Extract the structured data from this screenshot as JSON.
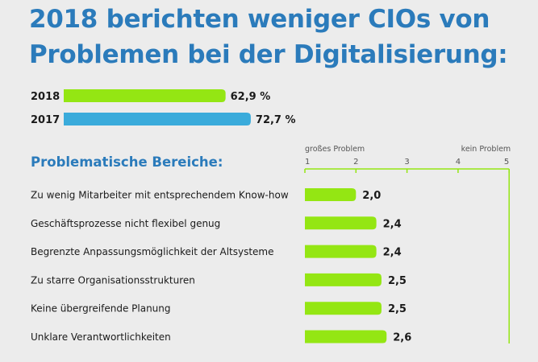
{
  "title": {
    "line1": "2018 berichten weniger CIOs von",
    "line2": "Problemen bei der Digitalisierung:"
  },
  "subtitle": "Problematische Bereiche:",
  "colors": {
    "title": "#2b7bbb",
    "green": "#94e613",
    "blue": "#3aabdb",
    "text": "#1a1a1a"
  },
  "chart_data": [
    {
      "type": "bar",
      "orientation": "horizontal",
      "categories": [
        "2018",
        "2017"
      ],
      "values": [
        62.9,
        72.7
      ],
      "value_labels": [
        "62,9 %",
        "72,7 %"
      ],
      "colors": [
        "#94e613",
        "#3aabdb"
      ],
      "xlim": [
        0,
        100
      ]
    },
    {
      "type": "bar",
      "orientation": "horizontal",
      "title": "Problematische Bereiche:",
      "categories": [
        "Zu wenig Mitarbeiter mit entsprechendem Know-how",
        "Geschäftsprozesse nicht flexibel genug",
        "Begrenzte Anpassungsmöglichkeit der Altsysteme",
        "Zu starre Organisationsstrukturen",
        "Keine übergreifende Planung",
        "Unklare Verantwortlichkeiten"
      ],
      "values": [
        2.0,
        2.4,
        2.4,
        2.5,
        2.5,
        2.6
      ],
      "value_labels": [
        "2,0",
        "2,4",
        "2,4",
        "2,5",
        "2,5",
        "2,6"
      ],
      "xlim": [
        1,
        5
      ],
      "ticks": [
        "1",
        "2",
        "3",
        "4",
        "5"
      ],
      "scale_left_label": "großes Problem",
      "scale_right_label": "kein Problem"
    }
  ]
}
